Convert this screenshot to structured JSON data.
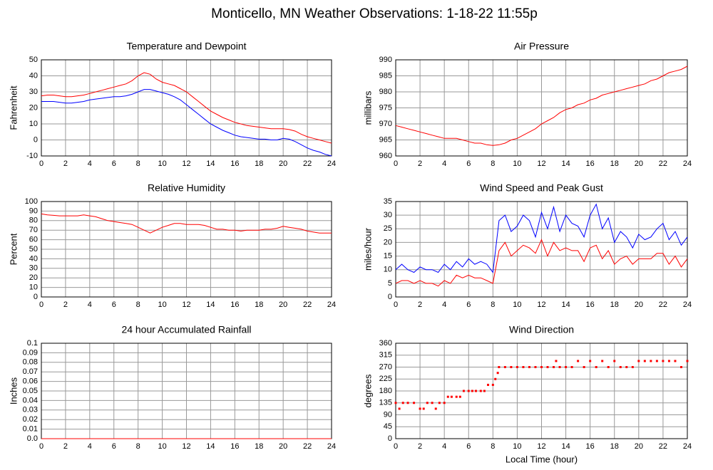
{
  "title": "Monticello, MN Weather Observations: 1-18-22 11:55p",
  "chart_data": [
    {
      "type": "line",
      "title": "Temperature and Dewpoint",
      "ylabel": "Fahrenheit",
      "x": [
        0,
        0.5,
        1,
        1.5,
        2,
        2.5,
        3,
        3.5,
        4,
        4.5,
        5,
        5.5,
        6,
        6.5,
        7,
        7.5,
        8,
        8.5,
        9,
        9.5,
        10,
        10.5,
        11,
        11.5,
        12,
        12.5,
        13,
        13.5,
        14,
        14.5,
        15,
        15.5,
        16,
        16.5,
        17,
        17.5,
        18,
        18.5,
        19,
        19.5,
        20,
        20.5,
        21,
        21.5,
        22,
        22.5,
        23,
        23.5,
        24
      ],
      "xlim": [
        0,
        24
      ],
      "xticks": [
        0,
        2,
        4,
        6,
        8,
        10,
        12,
        14,
        16,
        18,
        20,
        22,
        24
      ],
      "ylim": [
        -10,
        50
      ],
      "yticks": [
        -10,
        0,
        10,
        20,
        30,
        40,
        50
      ],
      "grid": true,
      "series": [
        {
          "color": "#ff0000",
          "values": [
            27.5,
            28,
            28,
            27.5,
            27,
            27,
            27.5,
            28,
            29,
            30,
            31,
            32,
            33,
            34,
            35,
            37,
            40,
            42,
            41,
            38,
            36,
            35,
            34,
            32,
            30,
            27,
            24,
            21,
            18,
            16,
            14,
            12.5,
            11,
            10,
            9,
            8.5,
            8,
            7.5,
            7,
            7,
            7,
            6.5,
            5.5,
            3.5,
            2,
            1,
            0,
            -1,
            -2
          ]
        },
        {
          "color": "#0000ff",
          "values": [
            24,
            24,
            24,
            23.5,
            23,
            23,
            23.5,
            24,
            25,
            25.5,
            26,
            26.5,
            27,
            27,
            27.5,
            28.5,
            30,
            31.5,
            31.5,
            30.5,
            29.5,
            28.5,
            27,
            25,
            22,
            19,
            16,
            13,
            10,
            8,
            6,
            4.5,
            3,
            2,
            1.5,
            1,
            0.5,
            0.5,
            0,
            0,
            1,
            0.5,
            -1,
            -3,
            -5,
            -6.5,
            -7.5,
            -9,
            -10
          ]
        }
      ]
    },
    {
      "type": "line",
      "title": "Air Pressure",
      "ylabel": "millibars",
      "x": [
        0,
        0.5,
        1,
        1.5,
        2,
        2.5,
        3,
        3.5,
        4,
        4.5,
        5,
        5.5,
        6,
        6.5,
        7,
        7.5,
        8,
        8.5,
        9,
        9.5,
        10,
        10.5,
        11,
        11.5,
        12,
        12.5,
        13,
        13.5,
        14,
        14.5,
        15,
        15.5,
        16,
        16.5,
        17,
        17.5,
        18,
        18.5,
        19,
        19.5,
        20,
        20.5,
        21,
        21.5,
        22,
        22.5,
        23,
        23.5,
        24
      ],
      "xlim": [
        0,
        24
      ],
      "xticks": [
        0,
        2,
        4,
        6,
        8,
        10,
        12,
        14,
        16,
        18,
        20,
        22,
        24
      ],
      "ylim": [
        960,
        990
      ],
      "yticks": [
        960,
        965,
        970,
        975,
        980,
        985,
        990
      ],
      "grid": true,
      "series": [
        {
          "color": "#ff0000",
          "values": [
            969.5,
            969,
            968.5,
            968,
            967.5,
            967,
            966.5,
            966,
            965.5,
            965.5,
            965.5,
            965,
            964.5,
            964,
            964,
            963.5,
            963.3,
            963.5,
            964,
            965,
            965.5,
            966.5,
            967.5,
            968.5,
            970,
            971,
            972,
            973.5,
            974.5,
            975,
            976,
            976.5,
            977.5,
            978,
            979,
            979.5,
            980,
            980.5,
            981,
            981.5,
            982,
            982.5,
            983.5,
            984,
            985,
            986,
            986.5,
            987,
            988
          ]
        }
      ]
    },
    {
      "type": "line",
      "title": "Relative Humidity",
      "ylabel": "Percent",
      "x": [
        0,
        0.5,
        1,
        1.5,
        2,
        2.5,
        3,
        3.5,
        4,
        4.5,
        5,
        5.5,
        6,
        6.5,
        7,
        7.5,
        8,
        8.5,
        9,
        9.5,
        10,
        10.5,
        11,
        11.5,
        12,
        12.5,
        13,
        13.5,
        14,
        14.5,
        15,
        15.5,
        16,
        16.5,
        17,
        17.5,
        18,
        18.5,
        19,
        19.5,
        20,
        20.5,
        21,
        21.5,
        22,
        22.5,
        23,
        23.5,
        24
      ],
      "xlim": [
        0,
        24
      ],
      "xticks": [
        0,
        2,
        4,
        6,
        8,
        10,
        12,
        14,
        16,
        18,
        20,
        22,
        24
      ],
      "ylim": [
        0,
        100
      ],
      "yticks": [
        0,
        10,
        20,
        30,
        40,
        50,
        60,
        70,
        80,
        90,
        100
      ],
      "grid": true,
      "series": [
        {
          "color": "#ff0000",
          "values": [
            87,
            86,
            85.5,
            85,
            85,
            85,
            85,
            86,
            85,
            84,
            82,
            80,
            79,
            78,
            77,
            76,
            73,
            70,
            67,
            70,
            73,
            75,
            77,
            77,
            76,
            76,
            76,
            75,
            73,
            71,
            71,
            70,
            70,
            69,
            70,
            70,
            70,
            71,
            71,
            72,
            74,
            73,
            72,
            71,
            69,
            68,
            67,
            67,
            67
          ]
        }
      ]
    },
    {
      "type": "line",
      "title": "Wind Speed and Peak Gust",
      "ylabel": "miles/hour",
      "x": [
        0,
        0.5,
        1,
        1.5,
        2,
        2.5,
        3,
        3.5,
        4,
        4.5,
        5,
        5.5,
        6,
        6.5,
        7,
        7.5,
        8,
        8.5,
        9,
        9.5,
        10,
        10.5,
        11,
        11.5,
        12,
        12.5,
        13,
        13.5,
        14,
        14.5,
        15,
        15.5,
        16,
        16.5,
        17,
        17.5,
        18,
        18.5,
        19,
        19.5,
        20,
        20.5,
        21,
        21.5,
        22,
        22.5,
        23,
        23.5,
        24
      ],
      "xlim": [
        0,
        24
      ],
      "xticks": [
        0,
        2,
        4,
        6,
        8,
        10,
        12,
        14,
        16,
        18,
        20,
        22,
        24
      ],
      "ylim": [
        0,
        35
      ],
      "yticks": [
        0,
        5,
        10,
        15,
        20,
        25,
        30,
        35
      ],
      "grid": true,
      "series": [
        {
          "color": "#0000ff",
          "values": [
            10,
            12,
            10,
            9,
            11,
            10,
            10,
            9,
            12,
            10,
            13,
            11,
            14,
            12,
            13,
            12,
            9,
            28,
            30,
            24,
            26,
            30,
            28,
            22,
            31,
            25,
            33,
            24,
            30,
            27,
            26,
            22,
            30,
            34,
            25,
            29,
            20,
            24,
            22,
            18,
            23,
            21,
            22,
            25,
            27,
            21,
            24,
            19,
            22
          ]
        },
        {
          "color": "#ff0000",
          "values": [
            5,
            6,
            6,
            5,
            6,
            5,
            5,
            4,
            6,
            5,
            8,
            7,
            8,
            7,
            7,
            6,
            5,
            17,
            20,
            15,
            17,
            19,
            18,
            16,
            21,
            15,
            20,
            17,
            18,
            17,
            17,
            13,
            18,
            19,
            14,
            17,
            12,
            14,
            15,
            12,
            14,
            14,
            14,
            16,
            16,
            12,
            15,
            11,
            14
          ]
        }
      ]
    },
    {
      "type": "line",
      "title": "24 hour Accumulated Rainfall",
      "ylabel": "Inches",
      "x": [
        0,
        24
      ],
      "xlim": [
        0,
        24
      ],
      "xticks": [
        0,
        2,
        4,
        6,
        8,
        10,
        12,
        14,
        16,
        18,
        20,
        22,
        24
      ],
      "ylim": [
        0,
        0.1
      ],
      "yticks": [
        {
          "value": 0,
          "label": "0.0"
        },
        0.01,
        0.02,
        0.03,
        0.04,
        0.05,
        0.06,
        0.07,
        0.08,
        0.09,
        0.1
      ],
      "grid": true,
      "series": [
        {
          "color": "#ff0000",
          "values": [
            0,
            0
          ]
        }
      ]
    },
    {
      "type": "scatter",
      "title": "Wind Direction",
      "ylabel": "degrees",
      "xlabel": "Local Time (hour)",
      "x": [
        0,
        0.3,
        0.6,
        1,
        1.5,
        2,
        2.3,
        2.6,
        3,
        3.3,
        3.6,
        4,
        4.3,
        4.6,
        5,
        5.3,
        5.6,
        6,
        6.3,
        6.6,
        7,
        7.3,
        7.6,
        8,
        8.2,
        8.4,
        8.5,
        9,
        9.5,
        10,
        10.5,
        11,
        11.5,
        12,
        12.5,
        13,
        13.2,
        13.5,
        14,
        14.5,
        15,
        15.5,
        16,
        16.5,
        17,
        17.5,
        18,
        18.5,
        19,
        19.5,
        20,
        20.5,
        21,
        21.5,
        22,
        22.5,
        23,
        23.5,
        24
      ],
      "xlim": [
        0,
        24
      ],
      "xticks": [
        0,
        2,
        4,
        6,
        8,
        10,
        12,
        14,
        16,
        18,
        20,
        22,
        24
      ],
      "ylim": [
        0,
        360
      ],
      "yticks": [
        0,
        45,
        90,
        135,
        180,
        225,
        270,
        315,
        360
      ],
      "grid": true,
      "series": [
        {
          "color": "#ff0000",
          "values": [
            135,
            113,
            135,
            135,
            135,
            113,
            113,
            135,
            135,
            113,
            135,
            135,
            158,
            158,
            158,
            158,
            180,
            180,
            180,
            180,
            180,
            180,
            203,
            203,
            225,
            248,
            270,
            270,
            270,
            270,
            270,
            270,
            270,
            270,
            270,
            270,
            293,
            270,
            270,
            270,
            293,
            270,
            293,
            270,
            293,
            270,
            293,
            270,
            270,
            270,
            293,
            293,
            293,
            293,
            293,
            293,
            293,
            270,
            293
          ]
        }
      ]
    }
  ]
}
